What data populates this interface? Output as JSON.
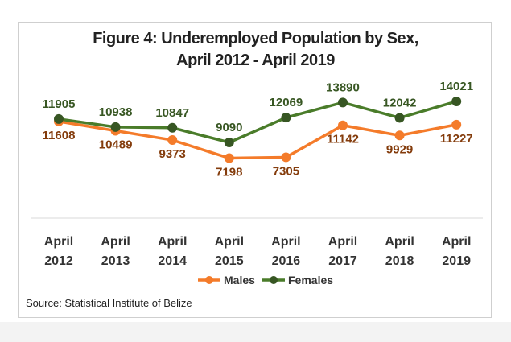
{
  "chart_data": {
    "type": "line",
    "title_line1": "Figure 4: Underemployed Population by Sex,",
    "title_line2": "April 2012 - April 2019",
    "categories": [
      [
        "April",
        "2012"
      ],
      [
        "April",
        "2013"
      ],
      [
        "April",
        "2014"
      ],
      [
        "April",
        "2015"
      ],
      [
        "April",
        "2016"
      ],
      [
        "April",
        "2017"
      ],
      [
        "April",
        "2018"
      ],
      [
        "April",
        "2019"
      ]
    ],
    "series": [
      {
        "name": "Males",
        "color": "#f47b2a",
        "label_color": "#843c0c",
        "values": [
          11608,
          10489,
          9373,
          7198,
          7305,
          11142,
          9929,
          11227
        ]
      },
      {
        "name": "Females",
        "color": "#4a7c2a",
        "label_color": "#385723",
        "values": [
          11905,
          10938,
          10847,
          9090,
          12069,
          13890,
          12042,
          14021
        ]
      }
    ],
    "ylim": [
      0,
      16000
    ],
    "grid": false,
    "legend": "bottom"
  },
  "source": "Source: Statistical Institute of Belize"
}
